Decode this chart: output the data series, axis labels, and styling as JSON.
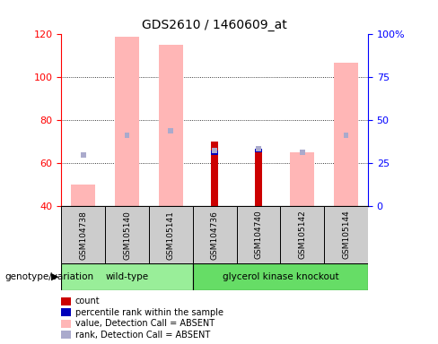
{
  "title": "GDS2610 / 1460609_at",
  "samples": [
    "GSM104738",
    "GSM105140",
    "GSM105141",
    "GSM104736",
    "GSM104740",
    "GSM105142",
    "GSM105144"
  ],
  "ylim_left": [
    40,
    120
  ],
  "ylim_right": [
    0,
    100
  ],
  "yticks_left": [
    40,
    60,
    80,
    100,
    120
  ],
  "yticks_right": [
    0,
    25,
    50,
    75,
    100
  ],
  "ytick_labels_right": [
    "0",
    "25",
    "50",
    "75",
    "100%"
  ],
  "pink_bars": [
    50,
    119,
    115,
    40,
    40,
    65,
    107
  ],
  "blue_sq": [
    64,
    73,
    75,
    66,
    67,
    65,
    73
  ],
  "red_bars": [
    40,
    40,
    40,
    70,
    67,
    40,
    40
  ],
  "dark_blue_bars": [
    40,
    40,
    40,
    66,
    67,
    40,
    40
  ],
  "color_pink": "#FFB6B6",
  "color_lightblue": "#AAAACC",
  "color_red": "#CC0000",
  "color_blue": "#0000BB",
  "color_green_wt": "#99EE99",
  "color_green_ko": "#66DD66",
  "color_gray": "#CCCCCC",
  "legend_items": [
    {
      "color": "#CC0000",
      "label": "count"
    },
    {
      "color": "#0000BB",
      "label": "percentile rank within the sample"
    },
    {
      "color": "#FFB6B6",
      "label": "value, Detection Call = ABSENT"
    },
    {
      "color": "#AAAACC",
      "label": "rank, Detection Call = ABSENT"
    }
  ]
}
